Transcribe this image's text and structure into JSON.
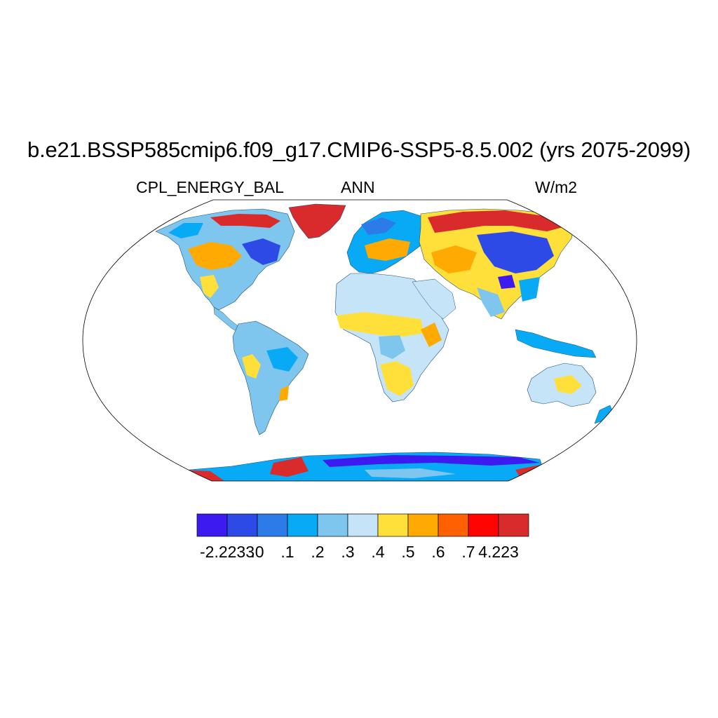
{
  "title": "b.e21.BSSP585cmip6.f09_g17.CMIP6-SSP5-8.5.002 (yrs 2075-2099)",
  "variable": "CPL_ENERGY_BAL",
  "season": "ANN",
  "units": "W/m2",
  "projection": "Robinson",
  "colorbar": {
    "colors": [
      "#3d1bf0",
      "#2e4ae6",
      "#2c7be8",
      "#08aaf5",
      "#7fc6ee",
      "#c6e4f7",
      "#ffe03a",
      "#ffa903",
      "#ff6102",
      "#ff0400",
      "#d92b2b"
    ],
    "labels": [
      "-2.2233",
      ".0",
      ".1",
      ".2",
      ".3",
      ".4",
      ".5",
      ".6",
      ".7",
      "4.223"
    ]
  }
}
